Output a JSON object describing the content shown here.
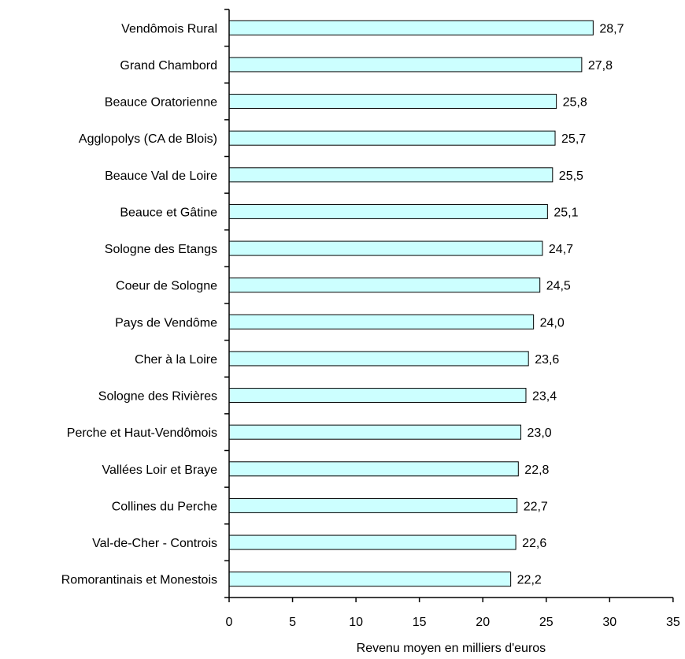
{
  "chart_data": {
    "type": "bar",
    "orientation": "horizontal",
    "categories": [
      "Vendômois Rural",
      "Grand Chambord",
      "Beauce Oratorienne",
      "Agglopolys (CA de Blois)",
      "Beauce Val de Loire",
      "Beauce et Gâtine",
      "Sologne des Etangs",
      "Coeur de Sologne",
      "Pays de Vendôme",
      "Cher à la Loire",
      "Sologne des Rivières",
      "Perche et Haut-Vendômois",
      "Vallées Loir et Braye",
      "Collines du Perche",
      "Val-de-Cher - Controis",
      "Romorantinais et Monestois"
    ],
    "values": [
      28.7,
      27.8,
      25.8,
      25.7,
      25.5,
      25.1,
      24.7,
      24.5,
      24.0,
      23.6,
      23.4,
      23.0,
      22.8,
      22.7,
      22.6,
      22.2
    ],
    "value_labels": [
      "28,7",
      "27,8",
      "25,8",
      "25,7",
      "25,5",
      "25,1",
      "24,7",
      "24,5",
      "24,0",
      "23,6",
      "23,4",
      "23,0",
      "22,8",
      "22,7",
      "22,6",
      "22,2"
    ],
    "xlabel": "Revenu moyen en milliers d'euros",
    "xlim": [
      0,
      35
    ],
    "xticks": [
      0,
      5,
      10,
      15,
      20,
      25,
      30,
      35
    ],
    "grid": false,
    "legend": "none",
    "bar_color": "#ccffff",
    "bar_edge_color": "#000000"
  }
}
